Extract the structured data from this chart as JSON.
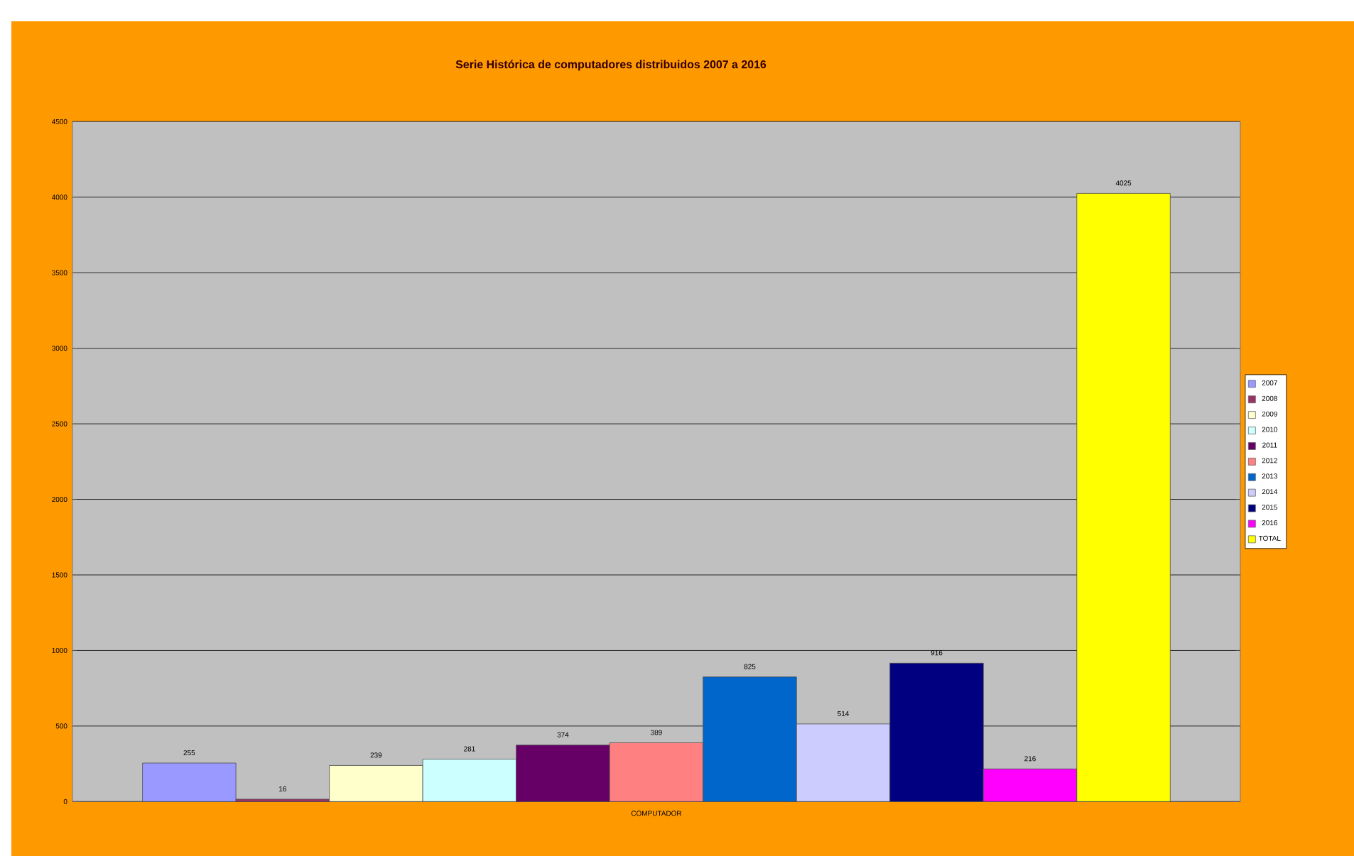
{
  "chart_data": {
    "type": "bar",
    "title": "Serie Histórica de computadores distribuidos 2007 a 2016",
    "categories": [
      "COMPUTADOR"
    ],
    "series": [
      {
        "name": "2007",
        "color": "#9999ff",
        "values": [
          255
        ]
      },
      {
        "name": "2008",
        "color": "#993366",
        "values": [
          16
        ]
      },
      {
        "name": "2009",
        "color": "#ffffcc",
        "values": [
          239
        ]
      },
      {
        "name": "2010",
        "color": "#ccffff",
        "values": [
          281
        ]
      },
      {
        "name": "2011",
        "color": "#660066",
        "values": [
          374
        ]
      },
      {
        "name": "2012",
        "color": "#ff8080",
        "values": [
          389
        ]
      },
      {
        "name": "2013",
        "color": "#0066cc",
        "values": [
          825
        ]
      },
      {
        "name": "2014",
        "color": "#ccccff",
        "values": [
          514
        ]
      },
      {
        "name": "2015",
        "color": "#000080",
        "values": [
          916
        ]
      },
      {
        "name": "2016",
        "color": "#ff00ff",
        "values": [
          216
        ]
      },
      {
        "name": "TOTAL",
        "color": "#ffff00",
        "values": [
          4025
        ]
      }
    ],
    "ylim": [
      0,
      4500
    ],
    "yticks": [
      0,
      500,
      1000,
      1500,
      2000,
      2500,
      3000,
      3500,
      4000,
      4500
    ],
    "grid": "y",
    "legend": "right",
    "data_labels": true
  }
}
